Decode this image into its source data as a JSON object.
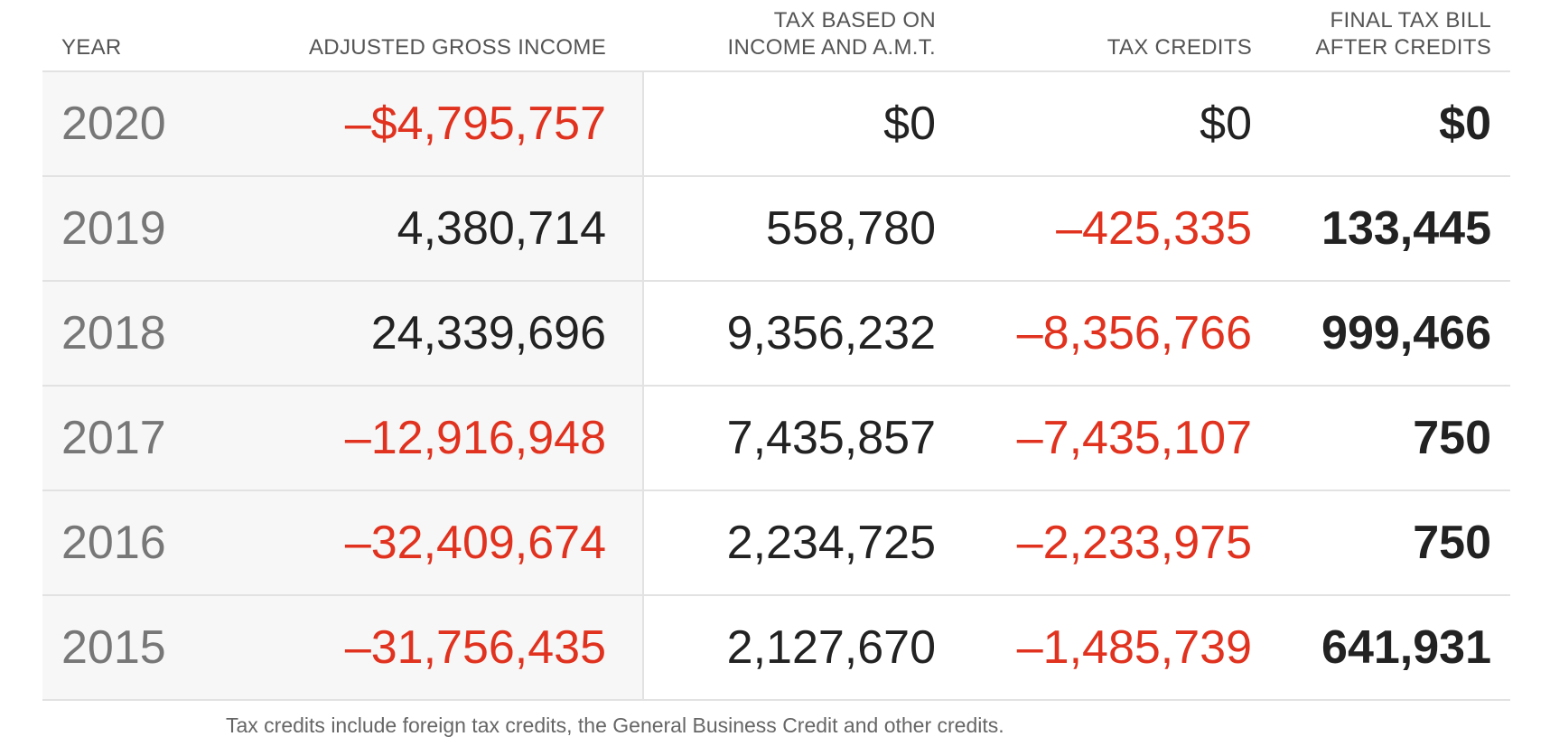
{
  "headers": {
    "year": "YEAR",
    "agi": "ADJUSTED GROSS INCOME",
    "tax_line1": "TAX BASED ON",
    "tax_line2": "INCOME AND A.M.T.",
    "credits": "TAX CREDITS",
    "final_line1": "FINAL TAX BILL",
    "final_line2": "AFTER CREDITS"
  },
  "rows": [
    {
      "year": "2020",
      "agi": "–$4,795,757",
      "tax": "$0",
      "credits": "$0",
      "final": "$0",
      "agi_negative": true,
      "credits_negative": false
    },
    {
      "year": "2019",
      "agi": "4,380,714",
      "tax": "558,780",
      "credits": "–425,335",
      "final": "133,445",
      "agi_negative": false,
      "credits_negative": true
    },
    {
      "year": "2018",
      "agi": "24,339,696",
      "tax": "9,356,232",
      "credits": "–8,356,766",
      "final": "999,466",
      "agi_negative": false,
      "credits_negative": true
    },
    {
      "year": "2017",
      "agi": "–12,916,948",
      "tax": "7,435,857",
      "credits": "–7,435,107",
      "final": "750",
      "agi_negative": true,
      "credits_negative": true
    },
    {
      "year": "2016",
      "agi": "–32,409,674",
      "tax": "2,234,725",
      "credits": "–2,233,975",
      "final": "750",
      "agi_negative": true,
      "credits_negative": true
    },
    {
      "year": "2015",
      "agi": "–31,756,435",
      "tax": "2,127,670",
      "credits": "–1,485,739",
      "final": "641,931",
      "agi_negative": true,
      "credits_negative": true
    }
  ],
  "note": "Tax credits include foreign tax credits, the General Business Credit and other credits.",
  "colors": {
    "negative": "#e0321e",
    "text": "#222222",
    "year": "#777777",
    "shade": "#f7f7f7",
    "rule": "#e2e2e2"
  }
}
